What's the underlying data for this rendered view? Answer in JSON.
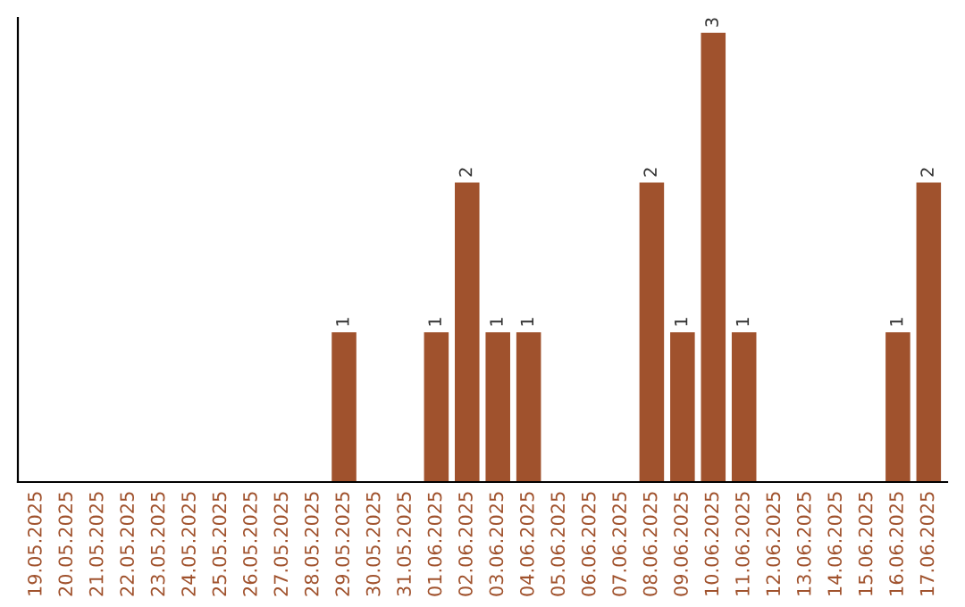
{
  "chart_data": {
    "type": "bar",
    "categories": [
      "19.05.2025",
      "20.05.2025",
      "21.05.2025",
      "22.05.2025",
      "23.05.2025",
      "24.05.2025",
      "25.05.2025",
      "26.05.2025",
      "27.05.2025",
      "28.05.2025",
      "29.05.2025",
      "30.05.2025",
      "31.05.2025",
      "01.06.2025",
      "02.06.2025",
      "03.06.2025",
      "04.06.2025",
      "05.06.2025",
      "06.06.2025",
      "07.06.2025",
      "08.06.2025",
      "09.06.2025",
      "10.06.2025",
      "11.06.2025",
      "12.06.2025",
      "13.06.2025",
      "14.06.2025",
      "15.06.2025",
      "16.06.2025",
      "17.06.2025"
    ],
    "values": [
      0,
      0,
      0,
      0,
      0,
      0,
      0,
      0,
      0,
      0,
      1,
      0,
      0,
      1,
      2,
      1,
      1,
      0,
      0,
      0,
      2,
      1,
      3,
      1,
      0,
      0,
      0,
      0,
      1,
      2
    ],
    "value_labels": [
      null,
      null,
      null,
      null,
      null,
      null,
      null,
      null,
      null,
      null,
      "1",
      null,
      null,
      "1",
      "2",
      "1",
      "1",
      null,
      null,
      null,
      "2",
      "1",
      "3",
      "1",
      null,
      null,
      null,
      null,
      "1",
      "2"
    ],
    "color": "#a0522d",
    "ylim": [
      0,
      3.1
    ],
    "tick_labels": "x",
    "grid": false,
    "legend": false
  }
}
